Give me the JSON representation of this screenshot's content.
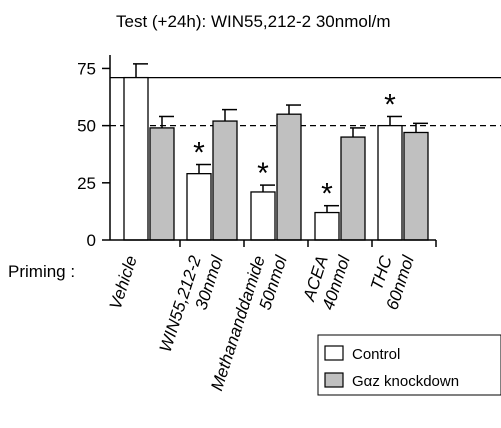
{
  "chart_data": {
    "type": "bar",
    "title": "Test (+24h): WIN55,212-2   30nmol/m",
    "categories": [
      {
        "lines": [
          "Vehicle"
        ]
      },
      {
        "lines": [
          "WIN55,212-2",
          "30nmol"
        ]
      },
      {
        "lines": [
          "Methananddamide",
          "50nmol"
        ]
      },
      {
        "lines": [
          "ACEA",
          "40nmol"
        ]
      },
      {
        "lines": [
          "THC",
          "60nmol"
        ]
      }
    ],
    "x_prefix_label": "Priming :",
    "series": [
      {
        "name": "Control",
        "color": "#ffffff",
        "values": [
          71,
          29,
          21,
          12,
          50
        ],
        "errors": [
          6,
          4,
          3,
          3,
          4
        ]
      },
      {
        "name": "Gαz knockdown",
        "color": "#c0c0c0",
        "values": [
          49,
          52,
          55,
          45,
          47
        ],
        "errors": [
          5,
          5,
          4,
          4,
          4
        ]
      }
    ],
    "significance": [
      {
        "series": 0,
        "category": 1,
        "symbol": "*"
      },
      {
        "series": 0,
        "category": 2,
        "symbol": "*"
      },
      {
        "series": 0,
        "category": 3,
        "symbol": "*"
      },
      {
        "series": 0,
        "category": 4,
        "symbol": "*"
      }
    ],
    "reference_lines": [
      {
        "value": 71,
        "style": "solid"
      },
      {
        "value": 50,
        "style": "dashed"
      }
    ],
    "ylim": [
      0,
      80
    ],
    "yticks": [
      0,
      25,
      50,
      75
    ],
    "legend_position": "bottom-right"
  }
}
